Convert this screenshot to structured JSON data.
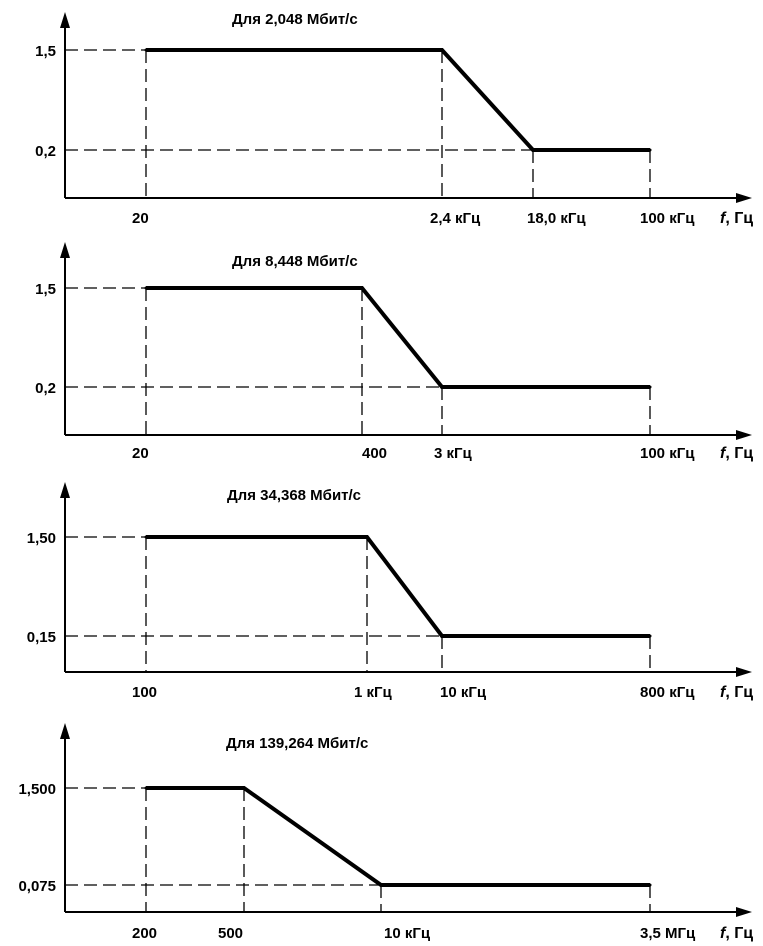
{
  "chart_data": [
    {
      "type": "line",
      "title": "Для 2,048 Мбит/с",
      "xlabel": "f, Гц",
      "ylabel": "",
      "x_scale": "log",
      "x_ticks": [
        "20",
        "2,4 кГц",
        "18,0 кГц",
        "100 кГц"
      ],
      "y_ticks": [
        "1,5",
        "0,2"
      ],
      "series": [
        {
          "x": [
            20,
            2400,
            18000,
            100000
          ],
          "y": [
            1.5,
            1.5,
            0.2,
            0.2
          ]
        }
      ]
    },
    {
      "type": "line",
      "title": "Для 8,448 Мбит/с",
      "xlabel": "f, Гц",
      "ylabel": "",
      "x_scale": "log",
      "x_ticks": [
        "20",
        "400",
        "3 кГц",
        "100 кГц"
      ],
      "y_ticks": [
        "1,5",
        "0,2"
      ],
      "series": [
        {
          "x": [
            20,
            400,
            3000,
            100000
          ],
          "y": [
            1.5,
            1.5,
            0.2,
            0.2
          ]
        }
      ]
    },
    {
      "type": "line",
      "title": "Для 34,368 Мбит/с",
      "xlabel": "f, Гц",
      "ylabel": "",
      "x_scale": "log",
      "x_ticks": [
        "100",
        "1 кГц",
        "10 кГц",
        "800 кГц"
      ],
      "y_ticks": [
        "1,50",
        "0,15"
      ],
      "series": [
        {
          "x": [
            100,
            1000,
            10000,
            800000
          ],
          "y": [
            1.5,
            1.5,
            0.15,
            0.15
          ]
        }
      ]
    },
    {
      "type": "line",
      "title": "Для 139,264 Мбит/с",
      "xlabel": "f, Гц",
      "ylabel": "",
      "x_scale": "log",
      "x_ticks": [
        "200",
        "500",
        "10 кГц",
        "3,5 МГц"
      ],
      "y_ticks": [
        "1,500",
        "0,075"
      ],
      "series": [
        {
          "x": [
            200,
            500,
            10000,
            3500000
          ],
          "y": [
            1.5,
            1.5,
            0.075,
            0.075
          ]
        }
      ]
    }
  ]
}
